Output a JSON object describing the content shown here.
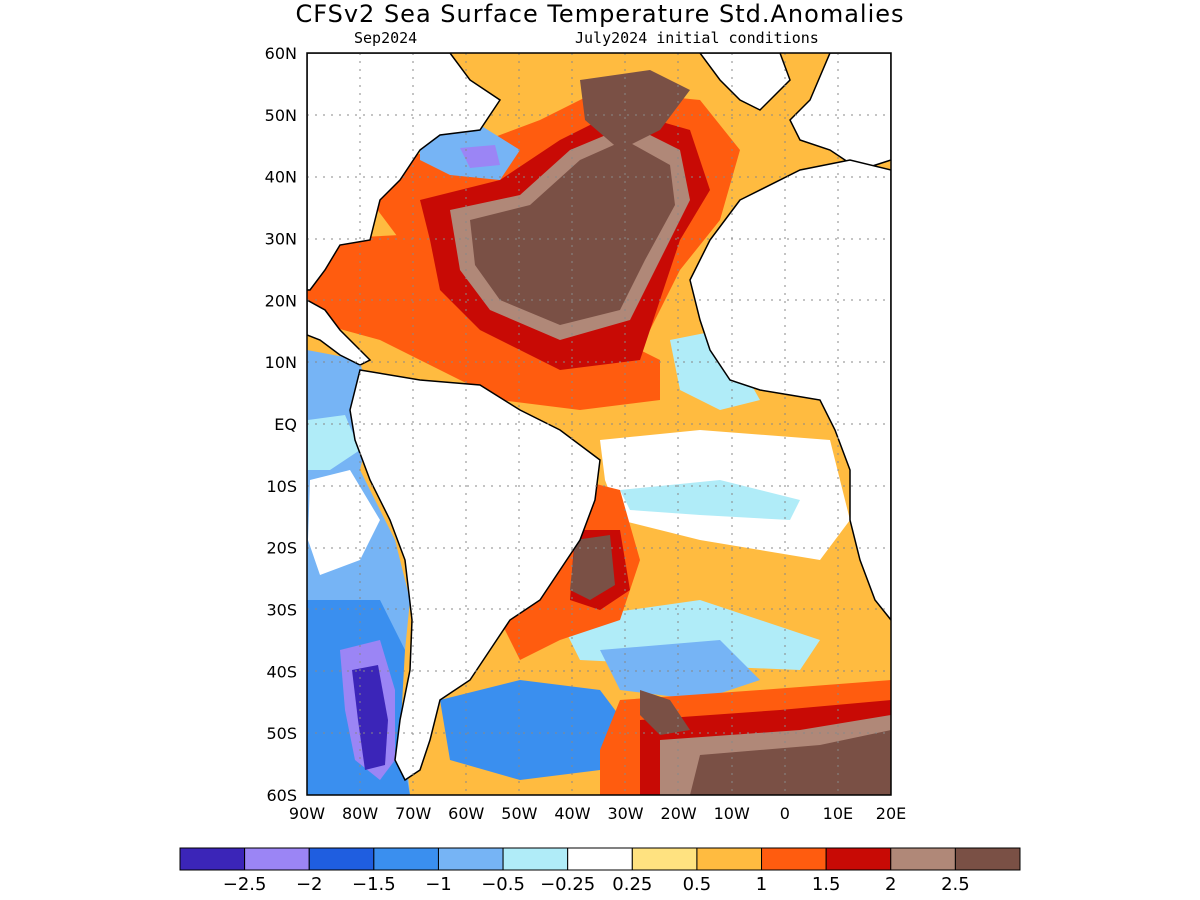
{
  "title": "CFSv2 Sea Surface Temperature Std.Anomalies",
  "subtitle_left": "Sep2024",
  "subtitle_right": "July2024 initial conditions",
  "lat_labels": [
    "60N",
    "50N",
    "40N",
    "30N",
    "20N",
    "10N",
    "EQ",
    "10S",
    "20S",
    "30S",
    "40S",
    "50S",
    "60S"
  ],
  "lon_labels": [
    "90W",
    "80W",
    "70W",
    "60W",
    "50W",
    "40W",
    "30W",
    "20W",
    "10W",
    "0",
    "10E",
    "20E"
  ],
  "map_extent": {
    "lon": [
      -90,
      20
    ],
    "lat": [
      -60,
      60
    ]
  },
  "colorbar": {
    "colors": [
      "#3b25b8",
      "#9b85f5",
      "#1f5ee0",
      "#3a8fef",
      "#76b4f5",
      "#b0ecf8",
      "#ffffff",
      "#ffe280",
      "#ffbb40",
      "#ff5c0f",
      "#c80a05",
      "#b08878",
      "#7a5045"
    ],
    "labels": [
      "−2.5",
      "−2",
      "−1.5",
      "−1",
      "−0.5",
      "−0.25",
      "0.25",
      "0.5",
      "1",
      "1.5",
      "2",
      "2.5"
    ]
  },
  "colors": {
    "very_high": "#7a5045",
    "high": "#b08878",
    "red": "#c80a05",
    "orange_red": "#ff5c0f",
    "orange": "#ffbb40",
    "yellow": "#ffe280",
    "light_cyan": "#b0ecf8",
    "light_blue": "#76b4f5",
    "blue": "#3a8fef",
    "mid_blue": "#1f5ee0",
    "lavender": "#9b85f5",
    "deep_purple": "#3b25b8"
  }
}
